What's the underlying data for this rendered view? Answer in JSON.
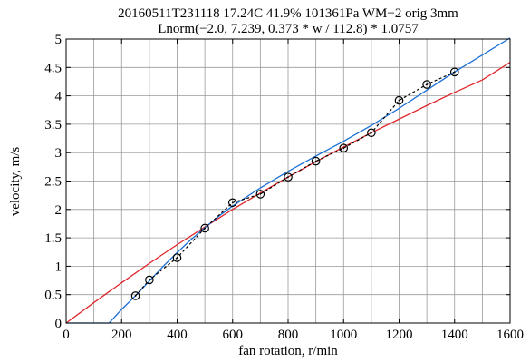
{
  "chart_data": {
    "type": "line",
    "title": "20160511T231118 17.24C 41.9% 101361Pa WM−2 orig 3mm",
    "subtitle": "Lnorm(−2.0, 7.239, 0.373 * w / 112.8) * 1.0757",
    "xlabel": "fan rotation, r/min",
    "ylabel": "velocity, m/s",
    "xlim": [
      0,
      1600
    ],
    "ylim": [
      0,
      5
    ],
    "xticks": [
      0,
      200,
      400,
      600,
      800,
      1000,
      1200,
      1400,
      1600
    ],
    "yticks": [
      0,
      0.5,
      1,
      1.5,
      2,
      2.5,
      3,
      3.5,
      4,
      4.5,
      5
    ],
    "xtick_labels": [
      "0",
      "200",
      "400",
      "600",
      "800",
      "1000",
      "1200",
      "1400",
      "1600"
    ],
    "ytick_labels": [
      "0",
      "0.5",
      "1",
      "1.5",
      "2",
      "2.5",
      "3",
      "3.5",
      "4",
      "4.5",
      "5"
    ],
    "grid": true,
    "x_minor_step": 100,
    "series": [
      {
        "style": "black-dashed-circles",
        "color": "#000000",
        "x": [
          250,
          300,
          400,
          500,
          600,
          700,
          800,
          900,
          1000,
          1100,
          1200,
          1300,
          1400
        ],
        "y": [
          0.48,
          0.76,
          1.15,
          1.67,
          2.12,
          2.27,
          2.57,
          2.85,
          3.08,
          3.35,
          3.92,
          4.2,
          4.42
        ]
      },
      {
        "style": "solid",
        "color": "#1a6fd6",
        "x": [
          0,
          155,
          200,
          250,
          300,
          350,
          400,
          450,
          500,
          550,
          600,
          700,
          800,
          900,
          1000,
          1100,
          1200,
          1300,
          1400,
          1500,
          1600
        ],
        "y": [
          0,
          0,
          0.24,
          0.48,
          0.74,
          1.0,
          1.24,
          1.47,
          1.68,
          1.88,
          2.06,
          2.38,
          2.67,
          2.94,
          3.2,
          3.48,
          3.78,
          4.1,
          4.42,
          4.72,
          5.02
        ]
      },
      {
        "style": "solid",
        "color": "#e0262b",
        "x": [
          0,
          100,
          200,
          300,
          400,
          500,
          600,
          700,
          800,
          900,
          1000,
          1100,
          1200,
          1300,
          1400,
          1500,
          1600
        ],
        "y": [
          0,
          0.36,
          0.71,
          1.05,
          1.38,
          1.69,
          2.0,
          2.29,
          2.57,
          2.84,
          3.1,
          3.35,
          3.59,
          3.83,
          4.06,
          4.28,
          4.59
        ]
      }
    ]
  }
}
